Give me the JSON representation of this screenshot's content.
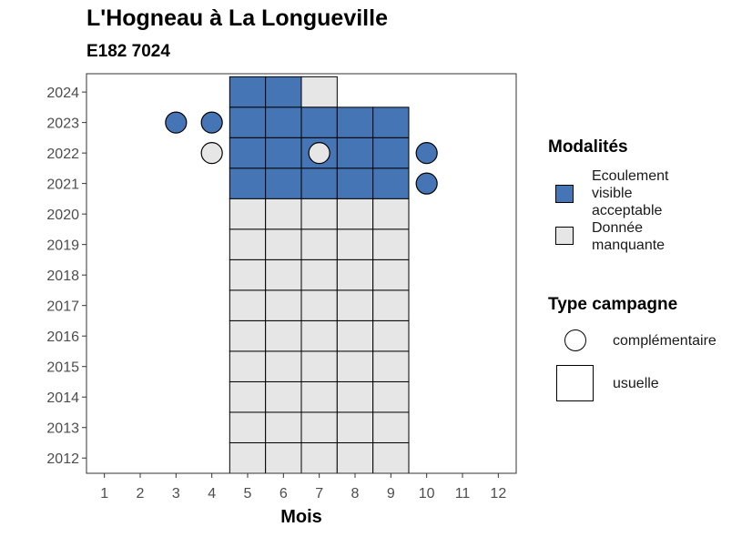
{
  "chart_data": {
    "type": "heatmap",
    "title": "L'Hogneau à La Longueville",
    "subtitle": "E182 7024",
    "xlabel": "Mois",
    "ylabel": "",
    "x_ticks": [
      1,
      2,
      3,
      4,
      5,
      6,
      7,
      8,
      9,
      10,
      11,
      12
    ],
    "y_ticks": [
      2012,
      2013,
      2014,
      2015,
      2016,
      2017,
      2018,
      2019,
      2020,
      2021,
      2022,
      2023,
      2024
    ],
    "xlim": [
      0.5,
      12.5
    ],
    "ylim": [
      2011.5,
      2024.6
    ],
    "colors": {
      "Ecoulement visible acceptable": "#4575b4",
      "Donnée manquante": "#e6e6e6"
    },
    "usuelle": [
      {
        "year": 2024,
        "months": [
          5,
          6
        ],
        "modalite": "Ecoulement visible acceptable"
      },
      {
        "year": 2024,
        "months": [
          7
        ],
        "modalite": "Donnée manquante"
      },
      {
        "year": 2023,
        "months": [
          5,
          6,
          7,
          8,
          9
        ],
        "modalite": "Ecoulement visible acceptable"
      },
      {
        "year": 2022,
        "months": [
          5,
          6,
          7,
          8,
          9
        ],
        "modalite": "Ecoulement visible acceptable"
      },
      {
        "year": 2021,
        "months": [
          5,
          6,
          7,
          8,
          9
        ],
        "modalite": "Ecoulement visible acceptable"
      },
      {
        "year": 2020,
        "months": [
          5,
          6,
          7,
          8,
          9
        ],
        "modalite": "Donnée manquante"
      },
      {
        "year": 2019,
        "months": [
          5,
          6,
          7,
          8,
          9
        ],
        "modalite": "Donnée manquante"
      },
      {
        "year": 2018,
        "months": [
          5,
          6,
          7,
          8,
          9
        ],
        "modalite": "Donnée manquante"
      },
      {
        "year": 2017,
        "months": [
          5,
          6,
          7,
          8,
          9
        ],
        "modalite": "Donnée manquante"
      },
      {
        "year": 2016,
        "months": [
          5,
          6,
          7,
          8,
          9
        ],
        "modalite": "Donnée manquante"
      },
      {
        "year": 2015,
        "months": [
          5,
          6,
          7,
          8,
          9
        ],
        "modalite": "Donnée manquante"
      },
      {
        "year": 2014,
        "months": [
          5,
          6,
          7,
          8,
          9
        ],
        "modalite": "Donnée manquante"
      },
      {
        "year": 2013,
        "months": [
          5,
          6,
          7,
          8,
          9
        ],
        "modalite": "Donnée manquante"
      },
      {
        "year": 2012,
        "months": [
          5,
          6,
          7,
          8,
          9
        ],
        "modalite": "Donnée manquante"
      }
    ],
    "complementaire": [
      {
        "month": 3,
        "year": 2023,
        "modalite": "Ecoulement visible acceptable"
      },
      {
        "month": 4,
        "year": 2023,
        "modalite": "Ecoulement visible acceptable"
      },
      {
        "month": 4,
        "year": 2022,
        "modalite": "Donnée manquante"
      },
      {
        "month": 7,
        "year": 2022,
        "modalite": "Donnée manquante"
      },
      {
        "month": 10,
        "year": 2022,
        "modalite": "Ecoulement visible acceptable"
      },
      {
        "month": 10,
        "year": 2021,
        "modalite": "Ecoulement visible acceptable"
      }
    ],
    "legend": {
      "placement": "right",
      "modalites": {
        "title": "Modalités",
        "items": [
          {
            "label": "Ecoulement visible acceptable",
            "color": "#4575b4"
          },
          {
            "label": "Donnée manquante",
            "color": "#e6e6e6"
          }
        ]
      },
      "type_campagne": {
        "title": "Type campagne",
        "items": [
          {
            "label": "complémentaire",
            "shape": "circle"
          },
          {
            "label": "usuelle",
            "shape": "square"
          }
        ]
      }
    }
  }
}
